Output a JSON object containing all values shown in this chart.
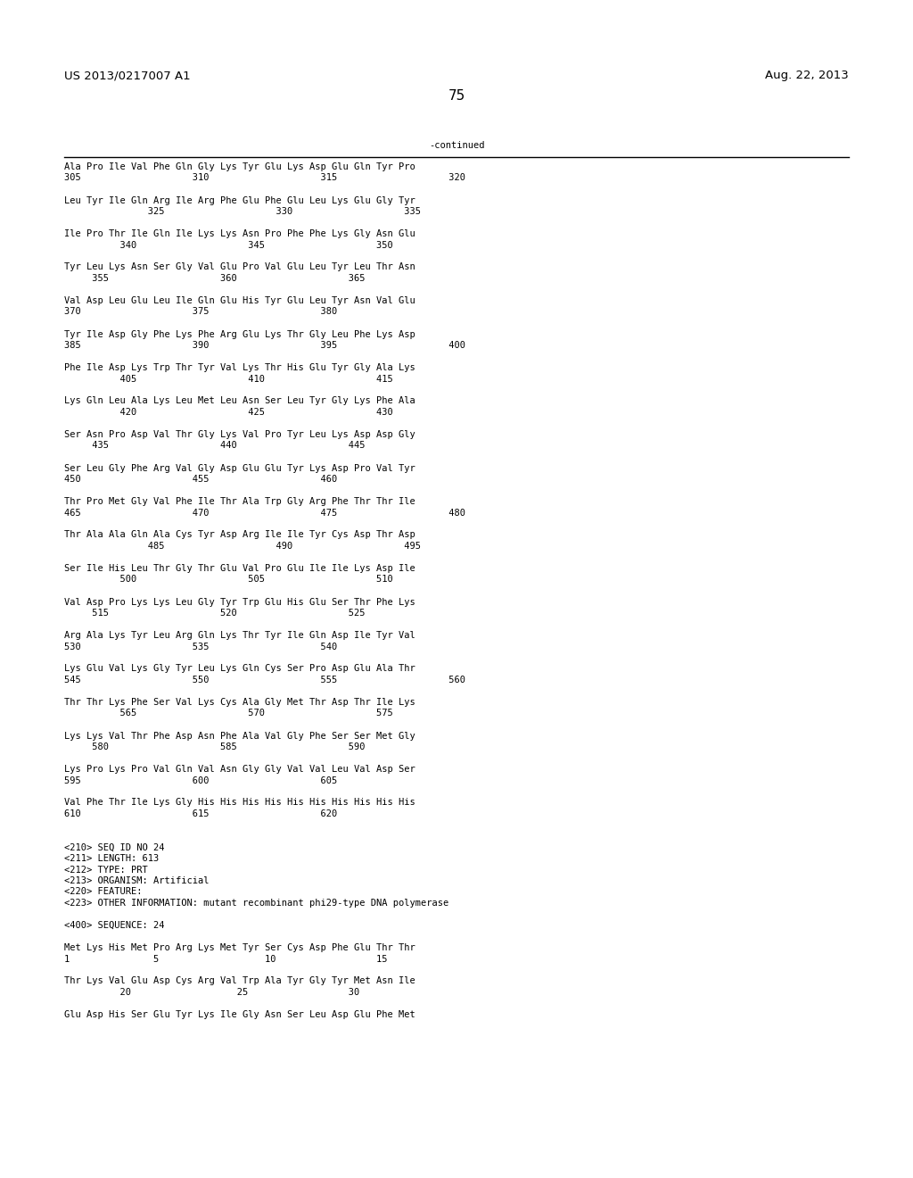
{
  "header_left": "US 2013/0217007 A1",
  "header_right": "Aug. 22, 2013",
  "page_number": "75",
  "continued_label": "-continued",
  "background_color": "#ffffff",
  "text_color": "#000000",
  "font_size": 7.5,
  "header_font_size": 9.5,
  "page_num_font_size": 11,
  "content_lines": [
    "Ala Pro Ile Val Phe Gln Gly Lys Tyr Glu Lys Asp Glu Gln Tyr Pro",
    "305                    310                    315                    320",
    "",
    "Leu Tyr Ile Gln Arg Ile Arg Phe Glu Phe Glu Leu Lys Glu Gly Tyr",
    "               325                    330                    335",
    "",
    "Ile Pro Thr Ile Gln Ile Lys Lys Asn Pro Phe Phe Lys Gly Asn Glu",
    "          340                    345                    350",
    "",
    "Tyr Leu Lys Asn Ser Gly Val Glu Pro Val Glu Leu Tyr Leu Thr Asn",
    "     355                    360                    365",
    "",
    "Val Asp Leu Glu Leu Ile Gln Glu His Tyr Glu Leu Tyr Asn Val Glu",
    "370                    375                    380",
    "",
    "Tyr Ile Asp Gly Phe Lys Phe Arg Glu Lys Thr Gly Leu Phe Lys Asp",
    "385                    390                    395                    400",
    "",
    "Phe Ile Asp Lys Trp Thr Tyr Val Lys Thr His Glu Tyr Gly Ala Lys",
    "          405                    410                    415",
    "",
    "Lys Gln Leu Ala Lys Leu Met Leu Asn Ser Leu Tyr Gly Lys Phe Ala",
    "          420                    425                    430",
    "",
    "Ser Asn Pro Asp Val Thr Gly Lys Val Pro Tyr Leu Lys Asp Asp Gly",
    "     435                    440                    445",
    "",
    "Ser Leu Gly Phe Arg Val Gly Asp Glu Glu Tyr Lys Asp Pro Val Tyr",
    "450                    455                    460",
    "",
    "Thr Pro Met Gly Val Phe Ile Thr Ala Trp Gly Arg Phe Thr Thr Ile",
    "465                    470                    475                    480",
    "",
    "Thr Ala Ala Gln Ala Cys Tyr Asp Arg Ile Ile Tyr Cys Asp Thr Asp",
    "               485                    490                    495",
    "",
    "Ser Ile His Leu Thr Gly Thr Glu Val Pro Glu Ile Ile Lys Asp Ile",
    "          500                    505                    510",
    "",
    "Val Asp Pro Lys Lys Leu Gly Tyr Trp Glu His Glu Ser Thr Phe Lys",
    "     515                    520                    525",
    "",
    "Arg Ala Lys Tyr Leu Arg Gln Lys Thr Tyr Ile Gln Asp Ile Tyr Val",
    "530                    535                    540",
    "",
    "Lys Glu Val Lys Gly Tyr Leu Lys Gln Cys Ser Pro Asp Glu Ala Thr",
    "545                    550                    555                    560",
    "",
    "Thr Thr Lys Phe Ser Val Lys Cys Ala Gly Met Thr Asp Thr Ile Lys",
    "          565                    570                    575",
    "",
    "Lys Lys Val Thr Phe Asp Asn Phe Ala Val Gly Phe Ser Ser Met Gly",
    "     580                    585                    590",
    "",
    "Lys Pro Lys Pro Val Gln Val Asn Gly Gly Val Val Leu Val Asp Ser",
    "595                    600                    605",
    "",
    "Val Phe Thr Ile Lys Gly His His His His His His His His His His",
    "610                    615                    620",
    "",
    "",
    "<210> SEQ ID NO 24",
    "<211> LENGTH: 613",
    "<212> TYPE: PRT",
    "<213> ORGANISM: Artificial",
    "<220> FEATURE:",
    "<223> OTHER INFORMATION: mutant recombinant phi29-type DNA polymerase",
    "",
    "<400> SEQUENCE: 24",
    "",
    "Met Lys His Met Pro Arg Lys Met Tyr Ser Cys Asp Phe Glu Thr Thr",
    "1               5                   10                  15",
    "",
    "Thr Lys Val Glu Asp Cys Arg Val Trp Ala Tyr Gly Tyr Met Asn Ile",
    "          20                   25                  30",
    "",
    "Glu Asp His Ser Glu Tyr Lys Ile Gly Asn Ser Leu Asp Glu Phe Met"
  ]
}
